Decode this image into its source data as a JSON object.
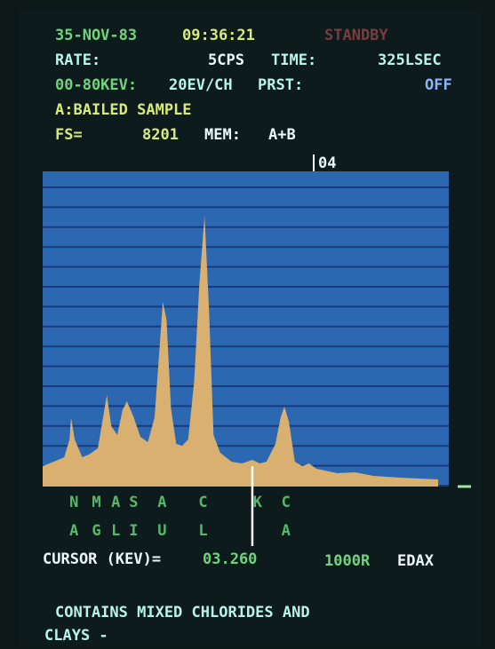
{
  "screen": {
    "date": "35-NOV-83",
    "clock": "09:36:21",
    "status": "STANDBY",
    "rate_label": "RATE:",
    "rate": "5CPS",
    "time_label": "TIME:",
    "time": "325LSEC",
    "range": "00-80KEV:",
    "resolution": "20EV/CH",
    "preset_label": "PRST:",
    "preset": "OFF",
    "sample": "A:BAILED SAMPLE",
    "fs_label": "FS=",
    "fs": "8201",
    "mem_label": "MEM:",
    "mem": "A+B",
    "marker": "04",
    "cursor_label": "CURSOR (KEV)=",
    "cursor_value": "03.260",
    "scale": "1000R",
    "brand": "EDAX",
    "note_1": "CONTAINS MIXED CHLORIDES AND",
    "note_2": "CLAYS -"
  },
  "chart_data": {
    "type": "area",
    "color": "#d9b070",
    "background": "#2c68b2",
    "x": [
      0.45,
      0.6,
      0.74,
      0.81,
      0.83,
      0.88,
      0.98,
      1.07,
      1.19,
      1.26,
      1.31,
      1.37,
      1.45,
      1.52,
      1.58,
      1.67,
      1.76,
      1.86,
      1.95,
      2.01,
      2.06,
      2.11,
      2.17,
      2.24,
      2.32,
      2.4,
      2.48,
      2.55,
      2.62,
      2.68,
      2.74,
      2.83,
      2.98,
      3.12,
      3.26,
      3.36,
      3.45,
      3.57,
      3.64,
      3.69,
      3.75,
      3.83,
      3.93,
      4.02,
      4.12,
      4.4,
      4.64,
      4.88,
      5.24,
      5.75
    ],
    "values": [
      531,
      647,
      762,
      1224,
      1802,
      1224,
      762,
      832,
      993,
      1802,
      2379,
      1571,
      1340,
      1987,
      2218,
      1802,
      1294,
      1155,
      1802,
      3419,
      4805,
      4343,
      2033,
      1109,
      1063,
      1224,
      2726,
      5267,
      7046,
      4574,
      1340,
      878,
      647,
      601,
      693,
      601,
      647,
      1109,
      1802,
      2079,
      1686,
      647,
      531,
      601,
      462,
      347,
      370,
      277,
      231,
      185
    ],
    "xlim": [
      0.45,
      5.75
    ],
    "ylim": [
      0,
      8201
    ],
    "cursor": 3.26,
    "element_x": [
      0.87,
      1.17,
      1.43,
      1.67,
      2.05,
      2.6,
      3.33,
      3.71
    ],
    "element_top": [
      "N",
      "M",
      "A",
      "S",
      "A",
      "C",
      "K",
      "C"
    ],
    "element_bottom": [
      "A",
      "G",
      "L",
      "I",
      "U",
      "L",
      null,
      "A"
    ]
  }
}
